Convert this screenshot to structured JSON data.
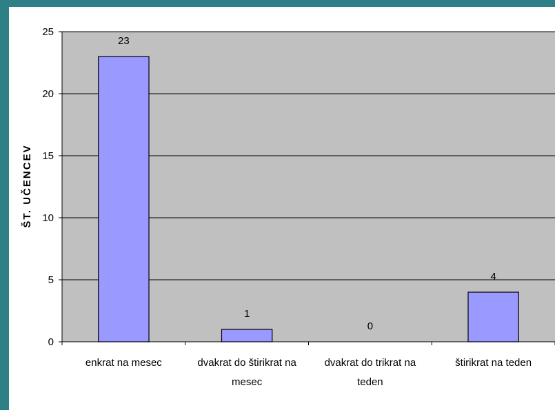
{
  "chart_data": {
    "type": "bar",
    "title": "",
    "xlabel": "",
    "ylabel": "ŠT. UČENCEV",
    "ylim": [
      0,
      25
    ],
    "yticks": [
      0,
      5,
      10,
      15,
      20,
      25
    ],
    "grid": true,
    "legend": "none",
    "categories": [
      [
        "enkrat na mesec"
      ],
      [
        "dvakrat do štirikrat na",
        "mesec"
      ],
      [
        "dvakrat do trikrat na",
        "teden"
      ],
      [
        "štirikrat na teden"
      ]
    ],
    "values": [
      23,
      1,
      0,
      4
    ],
    "data_labels": [
      "23",
      "1",
      "0",
      "4"
    ],
    "colors": {
      "frame": "#2f7f86",
      "plot_area": "#c0c0c0",
      "bar_fill": "#9999ff",
      "bar_stroke": "#000000",
      "gridline": "#000000"
    }
  }
}
